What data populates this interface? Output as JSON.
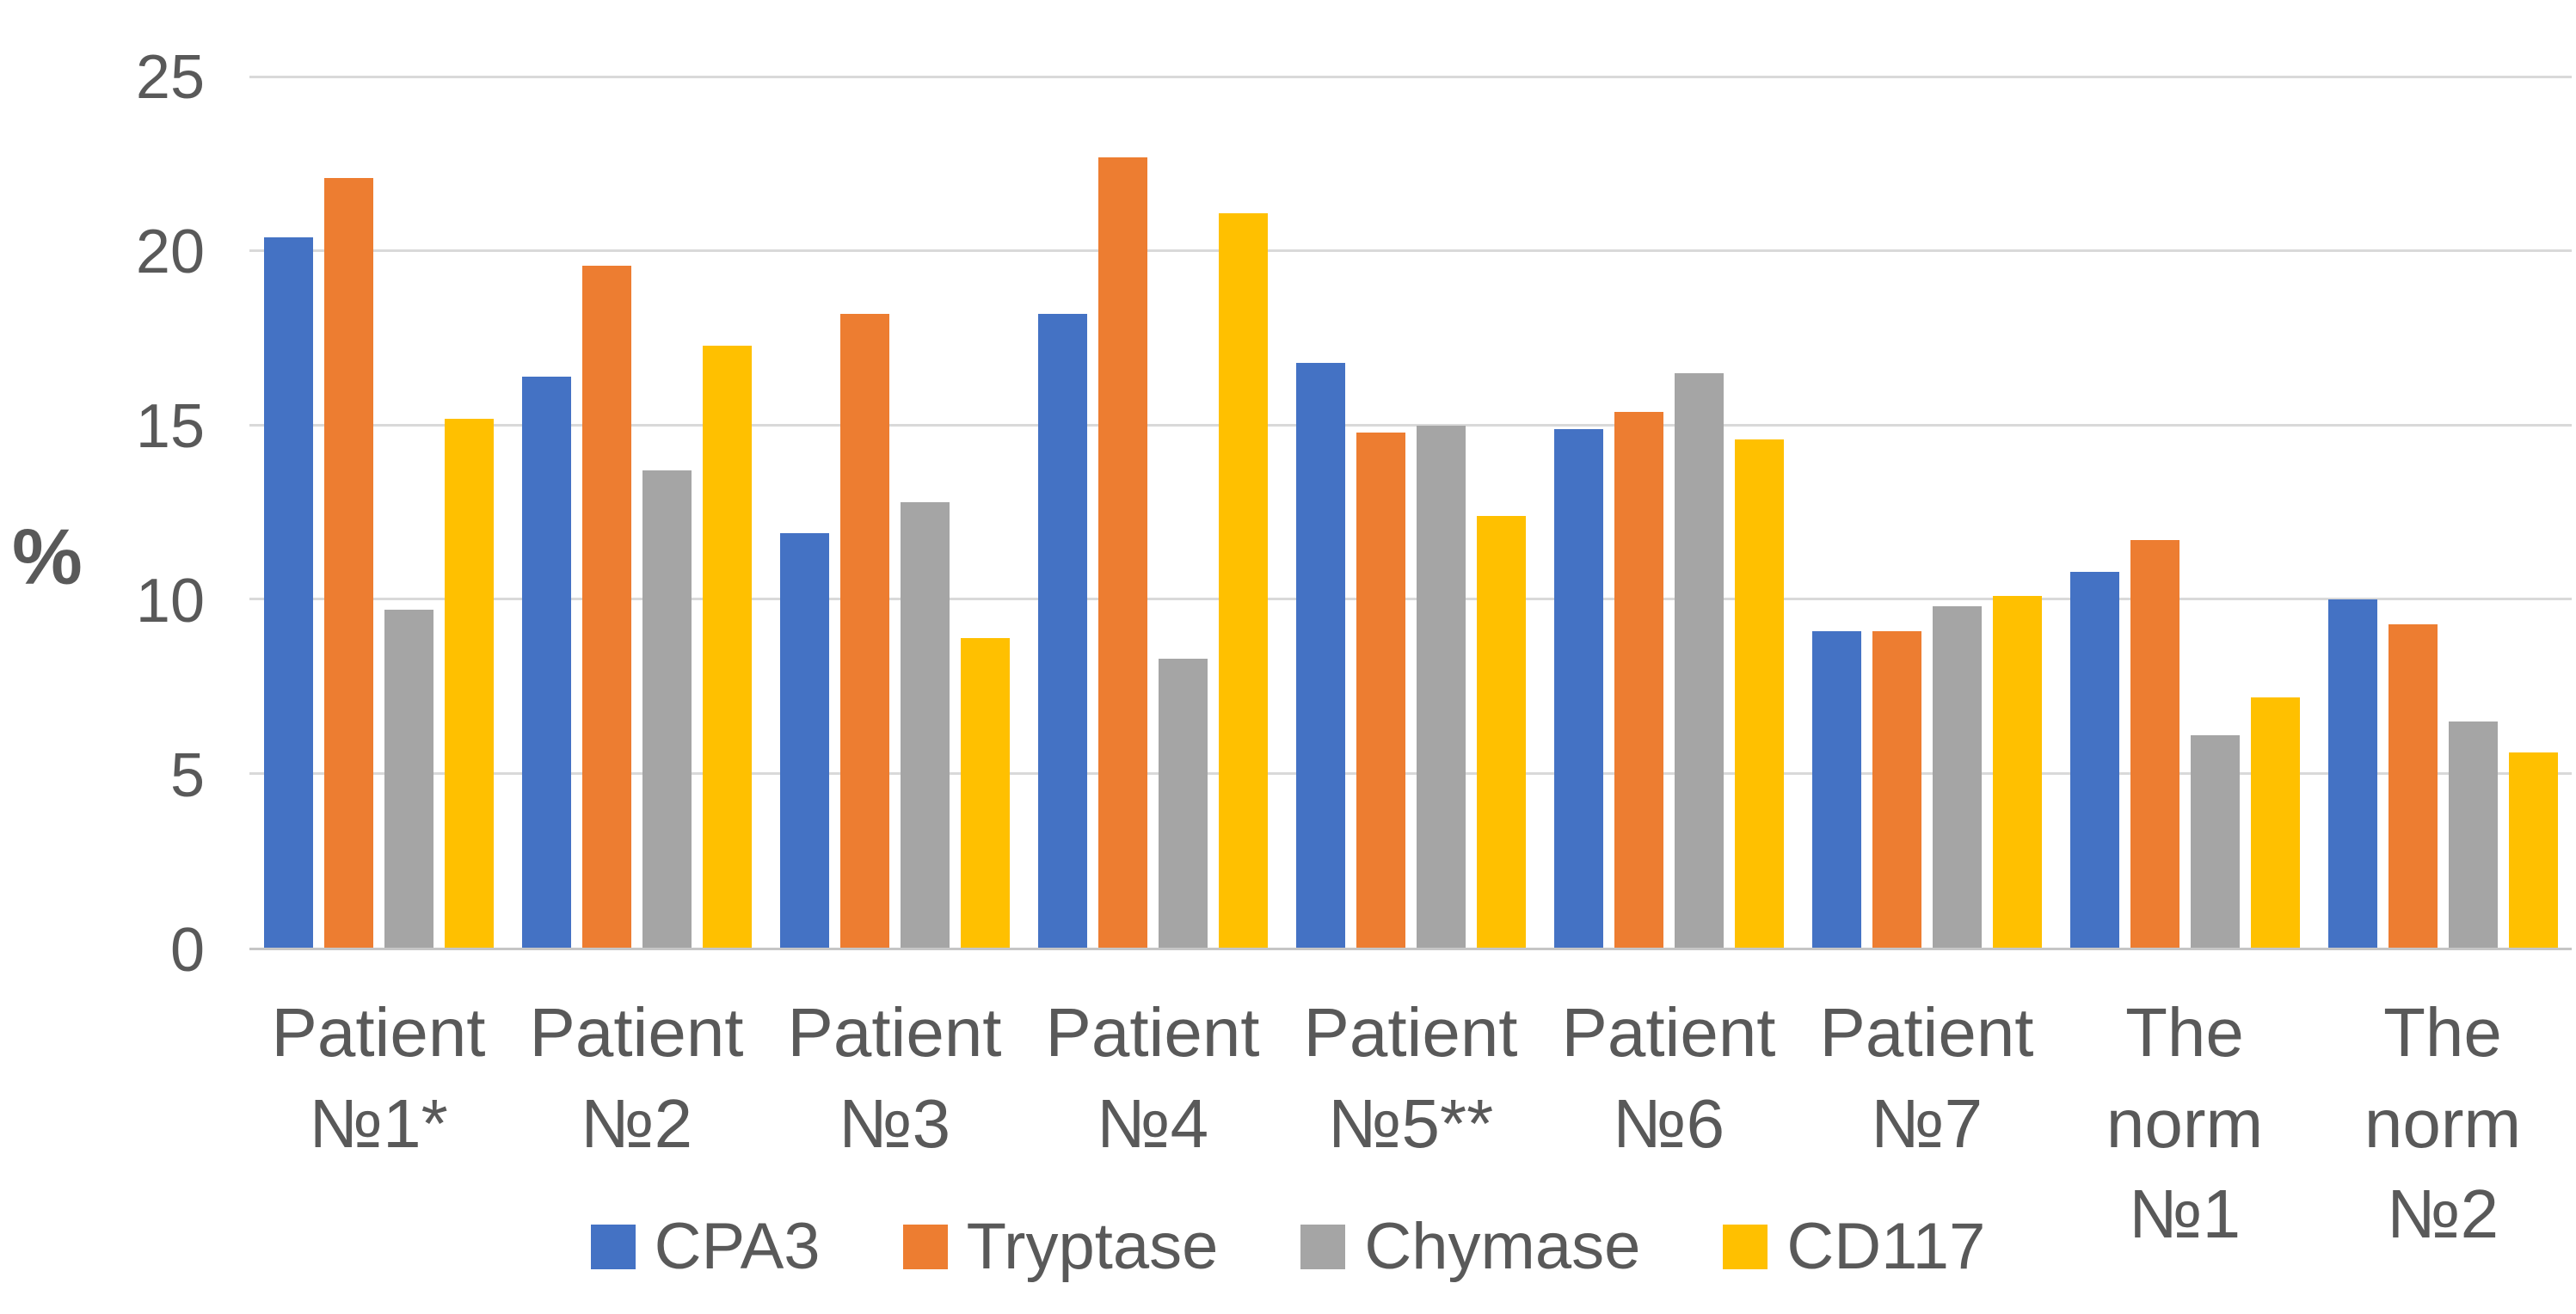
{
  "chart_data": {
    "type": "bar",
    "title": "",
    "ylabel": "%",
    "xlabel": "",
    "ylim": [
      0,
      25
    ],
    "yticks": [
      0,
      5,
      10,
      15,
      20,
      25
    ],
    "grid": true,
    "legend_position": "bottom",
    "categories": [
      "Patient №1*",
      "Patient №2",
      "Patient №3",
      "Patient №4",
      "Patient №5**",
      "Patient №6",
      "Patient №7",
      "The norm №1",
      "The norm №2"
    ],
    "series": [
      {
        "name": "CPA3",
        "color": "#4472C4",
        "values": [
          20.4,
          16.4,
          11.9,
          18.2,
          16.8,
          14.9,
          9.1,
          10.8,
          10.0
        ]
      },
      {
        "name": "Tryptase",
        "color": "#ED7D31",
        "values": [
          22.1,
          19.6,
          18.2,
          22.7,
          14.8,
          15.4,
          9.1,
          11.7,
          9.3
        ]
      },
      {
        "name": "Chymase",
        "color": "#A5A5A5",
        "values": [
          9.7,
          13.7,
          12.8,
          8.3,
          15.0,
          16.5,
          9.8,
          6.1,
          6.5
        ]
      },
      {
        "name": "CD117",
        "color": "#FFC000",
        "values": [
          15.2,
          17.3,
          8.9,
          21.1,
          12.4,
          14.6,
          10.1,
          7.2,
          5.6
        ]
      }
    ]
  }
}
